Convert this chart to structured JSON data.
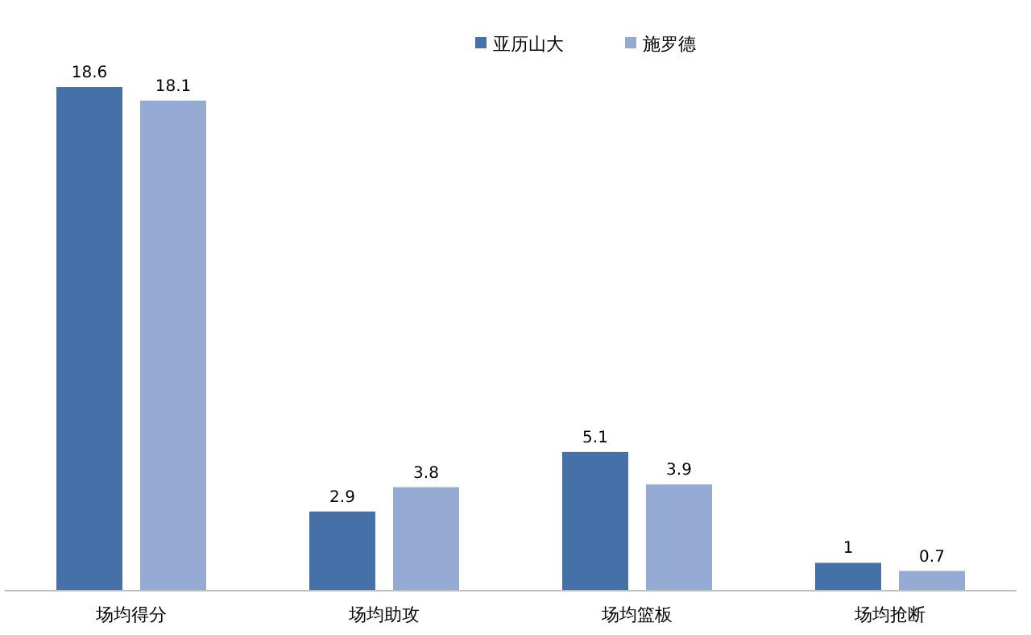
{
  "chart_data": {
    "type": "bar",
    "categories": [
      "场均得分",
      "场均助攻",
      "场均篮板",
      "场均抢断"
    ],
    "series": [
      {
        "name": "亚历山大",
        "color": "#4571a8",
        "values": [
          18.6,
          2.9,
          5.1,
          1
        ]
      },
      {
        "name": "施罗德",
        "color": "#95abd4",
        "values": [
          18.1,
          3.8,
          3.9,
          0.7
        ]
      }
    ],
    "data_labels": true,
    "legend": "top"
  }
}
